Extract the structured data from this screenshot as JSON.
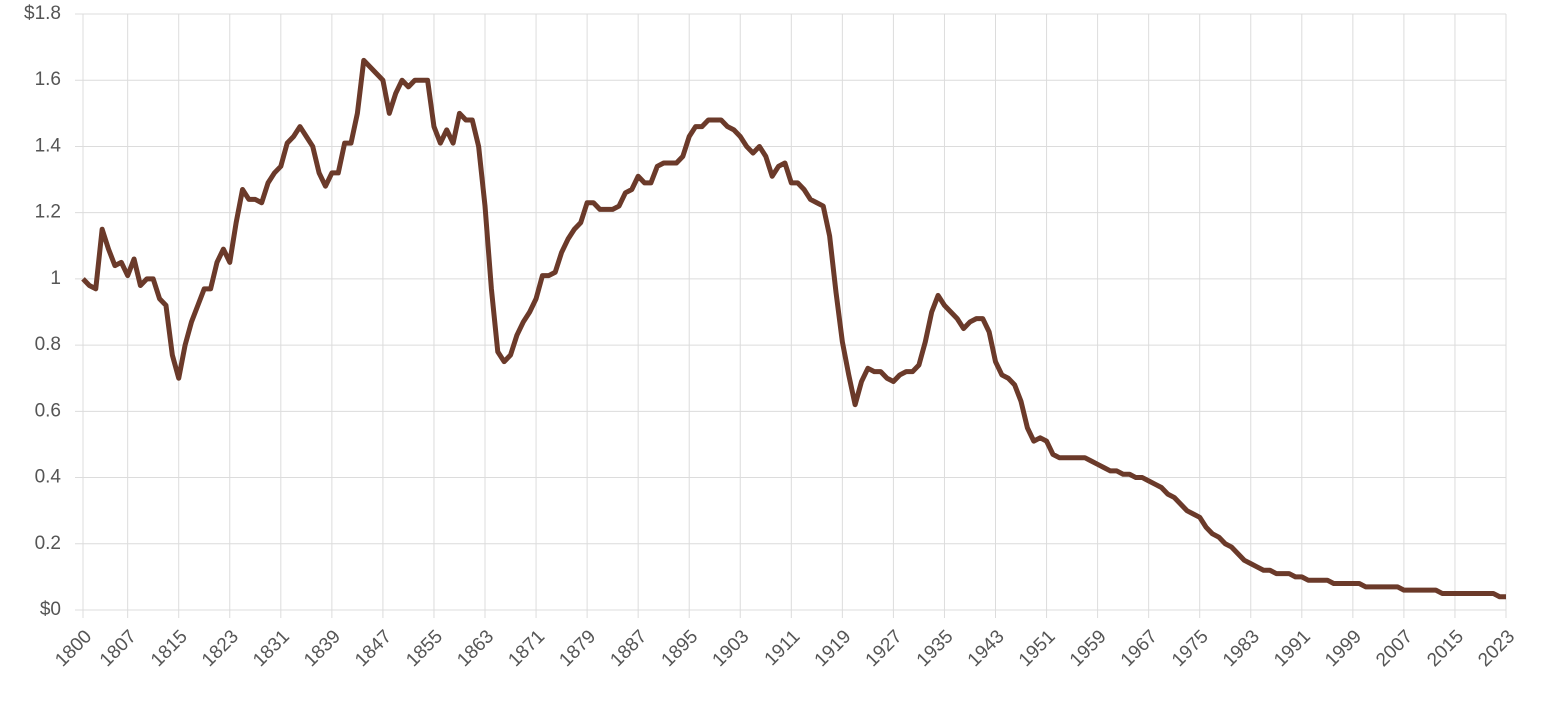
{
  "chart_data": {
    "type": "line",
    "color": "#6b3a2a",
    "grid": true,
    "x": [
      1800,
      1801,
      1802,
      1803,
      1804,
      1805,
      1806,
      1807,
      1808,
      1809,
      1810,
      1811,
      1812,
      1813,
      1814,
      1815,
      1816,
      1817,
      1818,
      1819,
      1820,
      1821,
      1822,
      1823,
      1824,
      1825,
      1826,
      1827,
      1828,
      1829,
      1830,
      1831,
      1832,
      1833,
      1834,
      1835,
      1836,
      1837,
      1838,
      1839,
      1840,
      1841,
      1842,
      1843,
      1844,
      1845,
      1846,
      1847,
      1848,
      1849,
      1850,
      1851,
      1852,
      1853,
      1854,
      1855,
      1856,
      1857,
      1858,
      1859,
      1860,
      1861,
      1862,
      1863,
      1864,
      1865,
      1866,
      1867,
      1868,
      1869,
      1870,
      1871,
      1872,
      1873,
      1874,
      1875,
      1876,
      1877,
      1878,
      1879,
      1880,
      1881,
      1882,
      1883,
      1884,
      1885,
      1886,
      1887,
      1888,
      1889,
      1890,
      1891,
      1892,
      1893,
      1894,
      1895,
      1896,
      1897,
      1898,
      1899,
      1900,
      1901,
      1902,
      1903,
      1904,
      1905,
      1906,
      1907,
      1908,
      1909,
      1910,
      1911,
      1912,
      1913,
      1914,
      1915,
      1916,
      1917,
      1918,
      1919,
      1920,
      1921,
      1922,
      1923,
      1924,
      1925,
      1926,
      1927,
      1928,
      1929,
      1930,
      1931,
      1932,
      1933,
      1934,
      1935,
      1936,
      1937,
      1938,
      1939,
      1940,
      1941,
      1942,
      1943,
      1944,
      1945,
      1946,
      1947,
      1948,
      1949,
      1950,
      1951,
      1952,
      1953,
      1954,
      1955,
      1956,
      1957,
      1958,
      1959,
      1960,
      1961,
      1962,
      1963,
      1964,
      1965,
      1966,
      1967,
      1968,
      1969,
      1970,
      1971,
      1972,
      1973,
      1974,
      1975,
      1976,
      1977,
      1978,
      1979,
      1980,
      1981,
      1982,
      1983,
      1984,
      1985,
      1986,
      1987,
      1988,
      1989,
      1990,
      1991,
      1992,
      1993,
      1994,
      1995,
      1996,
      1997,
      1998,
      1999,
      2000,
      2001,
      2002,
      2003,
      2004,
      2005,
      2006,
      2007,
      2008,
      2009,
      2010,
      2011,
      2012,
      2013,
      2014,
      2015,
      2016,
      2017,
      2018,
      2019,
      2020,
      2021,
      2022,
      2023
    ],
    "values": [
      1.0,
      0.98,
      0.97,
      1.15,
      1.09,
      1.04,
      1.05,
      1.01,
      1.06,
      0.98,
      1.0,
      1.0,
      0.94,
      0.92,
      0.77,
      0.7,
      0.8,
      0.87,
      0.92,
      0.97,
      0.97,
      1.05,
      1.09,
      1.05,
      1.17,
      1.27,
      1.24,
      1.24,
      1.23,
      1.29,
      1.32,
      1.34,
      1.41,
      1.43,
      1.46,
      1.43,
      1.4,
      1.32,
      1.28,
      1.32,
      1.32,
      1.41,
      1.41,
      1.5,
      1.66,
      1.64,
      1.62,
      1.6,
      1.5,
      1.56,
      1.6,
      1.58,
      1.6,
      1.6,
      1.6,
      1.46,
      1.41,
      1.45,
      1.41,
      1.5,
      1.48,
      1.48,
      1.4,
      1.22,
      0.97,
      0.78,
      0.75,
      0.77,
      0.83,
      0.87,
      0.9,
      0.94,
      1.01,
      1.01,
      1.02,
      1.08,
      1.12,
      1.15,
      1.17,
      1.23,
      1.23,
      1.21,
      1.21,
      1.21,
      1.22,
      1.26,
      1.27,
      1.31,
      1.29,
      1.29,
      1.34,
      1.35,
      1.35,
      1.35,
      1.37,
      1.43,
      1.46,
      1.46,
      1.48,
      1.48,
      1.48,
      1.46,
      1.45,
      1.43,
      1.4,
      1.38,
      1.4,
      1.37,
      1.31,
      1.34,
      1.35,
      1.29,
      1.29,
      1.27,
      1.24,
      1.23,
      1.22,
      1.13,
      0.96,
      0.81,
      0.71,
      0.62,
      0.69,
      0.73,
      0.72,
      0.72,
      0.7,
      0.69,
      0.71,
      0.72,
      0.72,
      0.74,
      0.81,
      0.9,
      0.95,
      0.92,
      0.9,
      0.88,
      0.85,
      0.87,
      0.88,
      0.88,
      0.84,
      0.75,
      0.71,
      0.7,
      0.68,
      0.63,
      0.55,
      0.51,
      0.52,
      0.51,
      0.47,
      0.46,
      0.46,
      0.46,
      0.46,
      0.46,
      0.45,
      0.44,
      0.43,
      0.42,
      0.42,
      0.41,
      0.41,
      0.4,
      0.4,
      0.39,
      0.38,
      0.37,
      0.35,
      0.34,
      0.32,
      0.3,
      0.29,
      0.28,
      0.25,
      0.23,
      0.22,
      0.2,
      0.19,
      0.17,
      0.15,
      0.14,
      0.13,
      0.12,
      0.12,
      0.11,
      0.11,
      0.11,
      0.1,
      0.1,
      0.09,
      0.09,
      0.09,
      0.09,
      0.08,
      0.08,
      0.08,
      0.08,
      0.08,
      0.07,
      0.07,
      0.07,
      0.07,
      0.07,
      0.07,
      0.06,
      0.06,
      0.06,
      0.06,
      0.06,
      0.06,
      0.05,
      0.05,
      0.05,
      0.05,
      0.05,
      0.05,
      0.05,
      0.05,
      0.05,
      0.04,
      0.04
    ],
    "xlim": [
      1800,
      2023
    ],
    "xticks": [
      1800,
      1807,
      1815,
      1823,
      1831,
      1839,
      1847,
      1855,
      1863,
      1871,
      1879,
      1887,
      1895,
      1903,
      1911,
      1919,
      1927,
      1935,
      1943,
      1951,
      1959,
      1967,
      1975,
      1983,
      1991,
      1999,
      2007,
      2015,
      2023
    ],
    "ylim": [
      0,
      1.8
    ],
    "yticks": [
      {
        "value": 0,
        "label": "$0"
      },
      0.2,
      0.4,
      0.6,
      0.8,
      1,
      1.2,
      1.4,
      1.6,
      {
        "value": 1.8,
        "label": "$1.8"
      }
    ]
  }
}
